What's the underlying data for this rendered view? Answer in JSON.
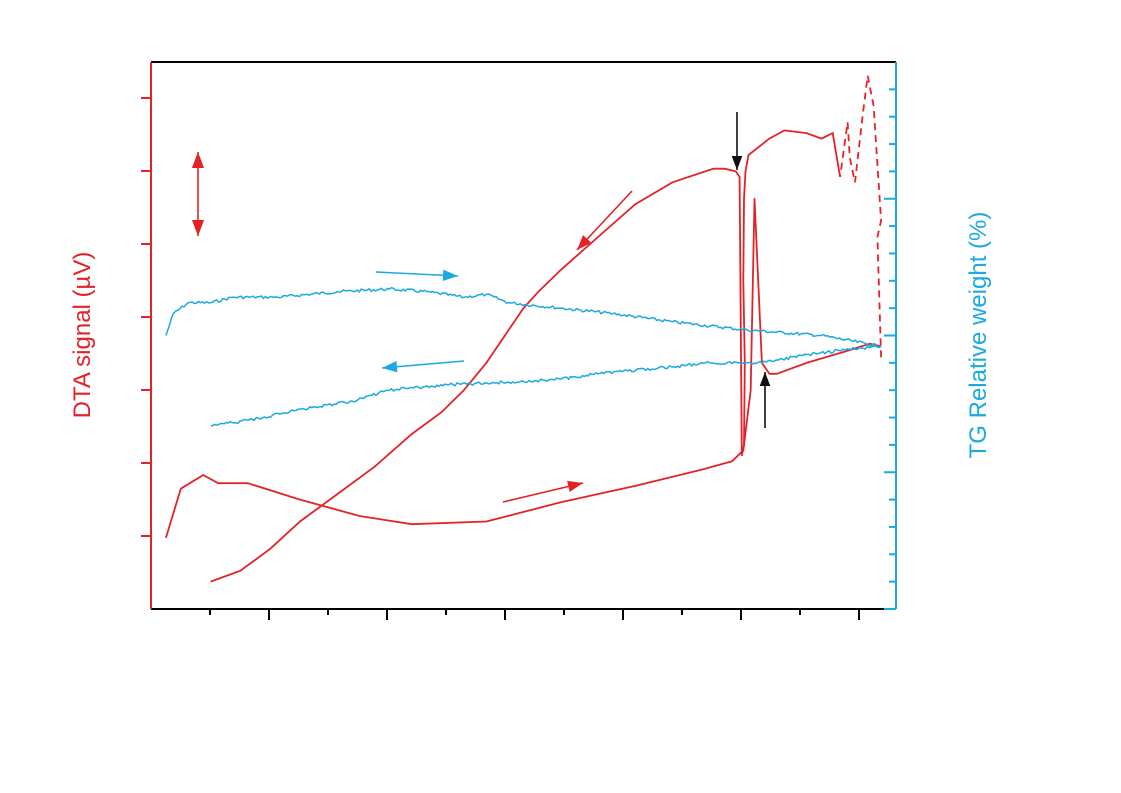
{
  "colors": {
    "dta": "#e32228",
    "tg": "#1aa9e0",
    "frame": "#000000",
    "event_arrow": "#111111"
  },
  "axes": {
    "left_label": "DTA signal (µV)",
    "right_label": "TG Relative weight (%)"
  },
  "chart_data": {
    "type": "line",
    "title": "",
    "xlabel": "",
    "ylabel": "DTA signal (µV)",
    "y2label": "TG Relative weight (%)",
    "x_tick_labels": [],
    "y_tick_labels": [],
    "y2_tick_labels": [],
    "grid": false,
    "legend": "none",
    "note_units": "no numeric tick labels are printed; values are in relative plot units (x: 0–100 across the axis, y: 0–100 bottom to top)",
    "xlim": [
      0,
      100
    ],
    "ylim": [
      0,
      100
    ],
    "y2lim": [
      0,
      100
    ],
    "series": [
      {
        "role": "DTA heating",
        "axis": "left",
        "style": "solid",
        "points": [
          [
            2,
            13
          ],
          [
            4,
            22
          ],
          [
            7,
            24.5
          ],
          [
            9,
            23
          ],
          [
            13,
            23
          ],
          [
            20,
            20
          ],
          [
            28,
            17
          ],
          [
            35,
            15.5
          ],
          [
            45,
            16
          ],
          [
            55,
            19.5
          ],
          [
            65,
            22.5
          ],
          [
            74,
            25.5
          ],
          [
            78,
            27
          ],
          [
            79.5,
            29
          ],
          [
            80.5,
            40
          ],
          [
            81,
            75
          ],
          [
            81.5,
            60
          ],
          [
            82,
            45
          ],
          [
            83,
            43
          ],
          [
            84,
            43
          ],
          [
            88,
            45
          ],
          [
            93,
            47
          ],
          [
            96.5,
            48.5
          ],
          [
            98,
            48
          ]
        ]
      },
      {
        "role": "DTA cooling",
        "axis": "left",
        "style": "solid",
        "points": [
          [
            98,
            46
          ],
          [
            97.5,
            68
          ],
          [
            98,
            71
          ],
          [
            97,
            92
          ],
          [
            96.2,
            97.5
          ],
          [
            95.5,
            90
          ],
          [
            94.5,
            78
          ],
          [
            93.8,
            82.5
          ],
          [
            93.5,
            89
          ],
          [
            92.5,
            79
          ],
          [
            91.5,
            87
          ],
          [
            90,
            86
          ],
          [
            88,
            87
          ],
          [
            85,
            87.5
          ],
          [
            83,
            86
          ],
          [
            80.2,
            83
          ],
          [
            79.8,
            80
          ],
          [
            79.6,
            75
          ],
          [
            79.5,
            60
          ],
          [
            79.7,
            45
          ],
          [
            79.6,
            30
          ],
          [
            79.3,
            28
          ],
          [
            79,
            79
          ],
          [
            78.5,
            80
          ],
          [
            77,
            80.5
          ],
          [
            75.5,
            80.5
          ],
          [
            70,
            78
          ],
          [
            65,
            74
          ],
          [
            60,
            68
          ],
          [
            55,
            62
          ],
          [
            52,
            58
          ],
          [
            50,
            55
          ],
          [
            45,
            45
          ],
          [
            42,
            40
          ],
          [
            39,
            36
          ],
          [
            35,
            32
          ],
          [
            30,
            26
          ],
          [
            25,
            21
          ],
          [
            20,
            16
          ],
          [
            16,
            11
          ],
          [
            12,
            7
          ],
          [
            8,
            5
          ]
        ]
      },
      {
        "role": "TG heating",
        "axis": "right",
        "style": "solid",
        "points": [
          [
            2,
            50
          ],
          [
            3,
            54
          ],
          [
            5,
            56
          ],
          [
            8,
            56
          ],
          [
            11,
            57
          ],
          [
            17,
            57
          ],
          [
            25,
            58
          ],
          [
            32,
            58.5
          ],
          [
            37,
            58
          ],
          [
            42,
            57
          ],
          [
            45,
            57.5
          ],
          [
            48,
            56
          ],
          [
            55,
            55
          ],
          [
            62,
            54
          ],
          [
            70,
            52.5
          ],
          [
            80,
            51
          ],
          [
            90,
            50
          ],
          [
            98,
            48
          ]
        ]
      },
      {
        "role": "TG cooling",
        "axis": "right",
        "style": "solid",
        "points": [
          [
            98,
            48
          ],
          [
            94,
            47.5
          ],
          [
            88,
            46.5
          ],
          [
            82,
            45
          ],
          [
            75,
            45
          ],
          [
            68,
            44
          ],
          [
            60,
            43
          ],
          [
            55,
            42
          ],
          [
            48,
            41.5
          ],
          [
            40,
            41
          ],
          [
            32,
            40
          ],
          [
            27,
            38
          ],
          [
            20,
            36.5
          ],
          [
            15,
            35
          ],
          [
            13,
            34.5
          ],
          [
            8,
            33.5
          ]
        ]
      }
    ],
    "annotations": [
      {
        "kind": "double-arrow",
        "meaning": "scale bar",
        "color": "dta"
      },
      {
        "kind": "arrow",
        "direction": "right",
        "series": "TG heating"
      },
      {
        "kind": "arrow",
        "direction": "left",
        "series": "TG cooling"
      },
      {
        "kind": "arrow",
        "direction": "down-left",
        "series": "DTA cooling"
      },
      {
        "kind": "arrow",
        "direction": "right",
        "series": "DTA heating"
      },
      {
        "kind": "arrow",
        "direction": "down",
        "color": "event_arrow"
      },
      {
        "kind": "arrow",
        "direction": "up",
        "color": "event_arrow"
      }
    ]
  }
}
